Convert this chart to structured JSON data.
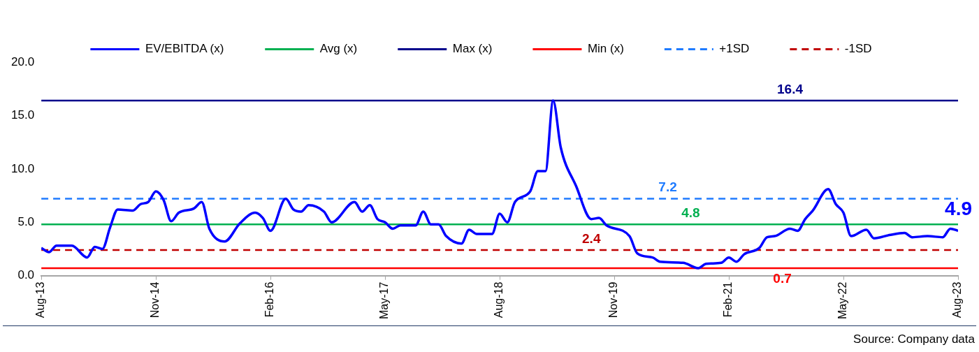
{
  "chart_data": {
    "type": "line",
    "legend": "top",
    "grid": false,
    "marker": "none",
    "xlim": [
      "2013-08",
      "2023-08"
    ],
    "xticks": [
      {
        "value": "2013-08",
        "label": "Aug-13"
      },
      {
        "value": "2014-11",
        "label": "Nov-14"
      },
      {
        "value": "2016-02",
        "label": "Feb-16"
      },
      {
        "value": "2017-05",
        "label": "May-17"
      },
      {
        "value": "2018-08",
        "label": "Aug-18"
      },
      {
        "value": "2019-11",
        "label": "Nov-19"
      },
      {
        "value": "2021-02",
        "label": "Feb-21"
      },
      {
        "value": "2022-05",
        "label": "May-22"
      },
      {
        "value": "2023-08",
        "label": "Aug-23"
      }
    ],
    "ylim": [
      0,
      20
    ],
    "yticks": [
      {
        "value": 0,
        "label": "0.0"
      },
      {
        "value": 5,
        "label": "5.0"
      },
      {
        "value": 10,
        "label": "10.0"
      },
      {
        "value": 15,
        "label": "15.0"
      },
      {
        "value": 20,
        "label": "20.0"
      }
    ],
    "series": [
      {
        "name": "EV/EBITDA (x)",
        "color": "#0000ff",
        "line_style": "solid",
        "x": [
          "2013-08",
          "2013-09",
          "2013-10",
          "2013-12",
          "2014-02",
          "2014-03",
          "2014-04",
          "2014-05",
          "2014-06",
          "2014-08",
          "2014-09",
          "2014-10",
          "2014-11",
          "2014-12",
          "2015-01",
          "2015-02",
          "2015-04",
          "2015-05",
          "2015-06",
          "2015-08",
          "2015-10",
          "2015-12",
          "2016-01",
          "2016-02",
          "2016-04",
          "2016-05",
          "2016-06",
          "2016-07",
          "2016-09",
          "2016-10",
          "2017-01",
          "2017-02",
          "2017-03",
          "2017-04",
          "2017-05",
          "2017-06",
          "2017-07",
          "2017-09",
          "2017-10",
          "2017-11",
          "2017-12",
          "2018-01",
          "2018-03",
          "2018-04",
          "2018-05",
          "2018-07",
          "2018-08",
          "2018-09",
          "2018-10",
          "2018-12",
          "2019-01",
          "2019-02",
          "2019-03",
          "2019-04",
          "2019-06",
          "2019-08",
          "2019-09",
          "2019-10",
          "2020-01",
          "2020-02",
          "2020-04",
          "2020-05",
          "2020-08",
          "2020-10",
          "2020-11",
          "2021-01",
          "2021-02",
          "2021-03",
          "2021-04",
          "2021-06",
          "2021-07",
          "2021-08",
          "2021-10",
          "2021-11",
          "2021-12",
          "2022-01",
          "2022-03",
          "2022-04",
          "2022-05",
          "2022-06",
          "2022-08",
          "2022-09",
          "2022-11",
          "2023-01",
          "2023-02",
          "2023-04",
          "2023-06",
          "2023-07",
          "2023-08"
        ],
        "values": [
          2.6,
          2.2,
          2.8,
          2.8,
          1.7,
          2.7,
          2.5,
          4.5,
          6.2,
          6.1,
          6.7,
          6.9,
          7.9,
          7.1,
          5.1,
          5.9,
          6.3,
          6.9,
          4.4,
          3.2,
          4.9,
          5.9,
          5.4,
          4.2,
          7.2,
          6.2,
          6.0,
          6.6,
          6.0,
          5.0,
          6.9,
          6.0,
          6.6,
          5.3,
          5.0,
          4.4,
          4.7,
          4.7,
          6.0,
          4.8,
          4.8,
          3.7,
          3.0,
          4.3,
          3.9,
          3.9,
          5.8,
          5.0,
          6.9,
          7.9,
          9.8,
          9.8,
          16.4,
          12.0,
          8.4,
          5.3,
          5.4,
          4.7,
          3.7,
          2.1,
          1.7,
          1.3,
          1.2,
          0.7,
          1.1,
          1.2,
          1.7,
          1.3,
          2.0,
          2.6,
          3.6,
          3.7,
          4.4,
          4.2,
          5.3,
          6.1,
          8.1,
          6.7,
          5.9,
          3.7,
          4.3,
          3.5,
          3.8,
          4.0,
          3.6,
          3.7,
          3.6,
          4.4,
          4.2
        ]
      },
      {
        "name": "Avg (x)",
        "color": "#00b050",
        "line_style": "solid",
        "x": [
          "2013-08",
          "2023-08"
        ],
        "values": [
          4.8,
          4.8
        ]
      },
      {
        "name": "Max (x)",
        "color": "#00008b",
        "line_style": "solid",
        "x": [
          "2013-08",
          "2023-08"
        ],
        "values": [
          16.4,
          16.4
        ]
      },
      {
        "name": "Min (x)",
        "color": "#ff0000",
        "line_style": "solid",
        "x": [
          "2013-08",
          "2023-08"
        ],
        "values": [
          0.7,
          0.7
        ]
      },
      {
        "name": "+1SD",
        "color": "#1f7bff",
        "line_style": "dashed",
        "x": [
          "2013-08",
          "2023-08"
        ],
        "values": [
          7.2,
          7.2
        ]
      },
      {
        "name": "-1SD",
        "color": "#c00000",
        "line_style": "dashed",
        "x": [
          "2013-08",
          "2023-08"
        ],
        "values": [
          2.4,
          2.4
        ]
      }
    ],
    "annotations": [
      {
        "text": "16.4",
        "x": "2021-10",
        "y": 16.4
      },
      {
        "text": "7.2",
        "x": "2020-06",
        "y": 7.2
      },
      {
        "text": "4.8",
        "x": "2020-09",
        "y": 4.8
      },
      {
        "text": "2.4",
        "x": "2019-08",
        "y": 2.4
      },
      {
        "text": "0.7",
        "x": "2021-09",
        "y": 0.7
      },
      {
        "text": "4.9",
        "x": "2023-08",
        "y": 4.2
      },
      "Source: Company data"
    ]
  }
}
